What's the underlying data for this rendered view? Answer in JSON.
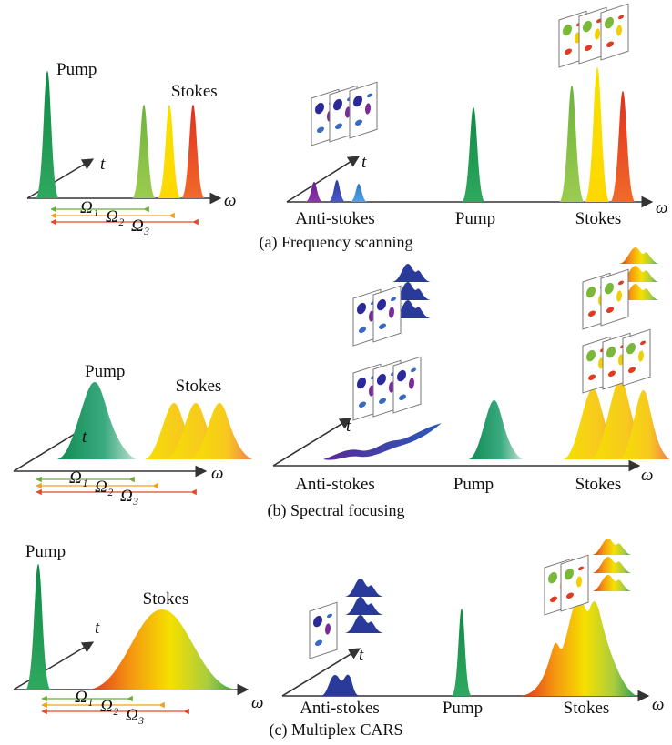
{
  "panels": [
    {
      "caption": "(a) Frequency scanning",
      "left": {
        "pump_label": "Pump",
        "stokes_label": "Stokes",
        "t_label": "t",
        "omega_label": "ω",
        "shifts": [
          "Ω₁",
          "Ω₂",
          "Ω₃"
        ]
      },
      "right": {
        "anti_stokes_label": "Anti-stokes",
        "pump_label": "Pump",
        "stokes_label": "Stokes",
        "t_label": "t",
        "omega_label": "ω"
      }
    },
    {
      "caption": "(b) Spectral focusing",
      "left": {
        "pump_label": "Pump",
        "stokes_label": "Stokes",
        "t_label": "t",
        "omega_label": "ω",
        "shifts": [
          "Ω₁",
          "Ω₂",
          "Ω₃"
        ]
      },
      "right": {
        "anti_stokes_label": "Anti-stokes",
        "pump_label": "Pump",
        "stokes_label": "Stokes",
        "t_label": "t",
        "omega_label": "ω"
      }
    },
    {
      "caption": "(c) Multiplex CARS",
      "left": {
        "pump_label": "Pump",
        "stokes_label": "Stokes",
        "t_label": "t",
        "omega_label": "ω",
        "shifts": [
          "Ω₁",
          "Ω₂",
          "Ω₃"
        ]
      },
      "right": {
        "anti_stokes_label": "Anti-stokes",
        "pump_label": "Pump",
        "stokes_label": "Stokes",
        "t_label": "t",
        "omega_label": "ω"
      }
    }
  ]
}
